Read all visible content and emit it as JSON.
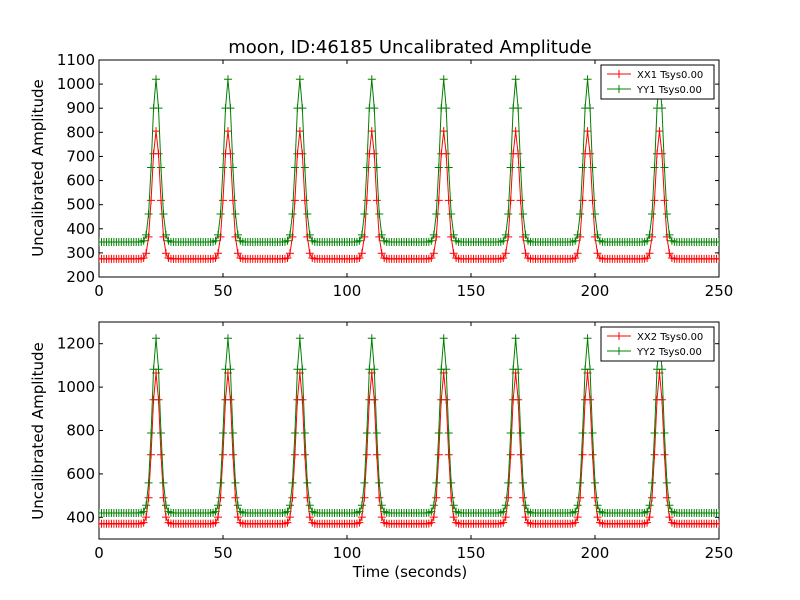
{
  "chart_data": [
    {
      "type": "line",
      "title": "moon, ID:46185 Uncalibrated Amplitude",
      "xlabel": "",
      "ylabel": "Uncalibrated Amplitude",
      "xlim": [
        0,
        250
      ],
      "ylim": [
        200,
        1100
      ],
      "xticks": [
        "0",
        "50",
        "100",
        "150",
        "200",
        "250"
      ],
      "yticks": [
        "200",
        "300",
        "400",
        "500",
        "600",
        "700",
        "800",
        "900",
        "1000",
        "1100"
      ],
      "legend_position": "top-right",
      "peak_times": [
        23,
        52,
        81,
        110,
        139,
        168,
        197,
        226
      ],
      "peak_width_seconds": 1.6,
      "sample_interval_seconds": 1,
      "series": [
        {
          "name": "XX1 Tsys0.00",
          "color": "#ff0000",
          "baseline": 275,
          "peak": 805
        },
        {
          "name": "YY1 Tsys0.00",
          "color": "#008000",
          "baseline": 345,
          "peak": 1020
        }
      ]
    },
    {
      "type": "line",
      "title": "",
      "xlabel": "Time (seconds)",
      "ylabel": "Uncalibrated Amplitude",
      "xlim": [
        0,
        250
      ],
      "ylim": [
        300,
        1300
      ],
      "xticks": [
        "0",
        "50",
        "100",
        "150",
        "200",
        "250"
      ],
      "yticks": [
        "400",
        "600",
        "800",
        "1000",
        "1200"
      ],
      "legend_position": "top-right",
      "peak_times": [
        23,
        52,
        81,
        110,
        139,
        168,
        197,
        226
      ],
      "peak_width_seconds": 1.6,
      "sample_interval_seconds": 1,
      "series": [
        {
          "name": "XX2 Tsys0.00",
          "color": "#ff0000",
          "baseline": 370,
          "peak": 1065
        },
        {
          "name": "YY2 Tsys0.00",
          "color": "#008000",
          "baseline": 420,
          "peak": 1225
        }
      ]
    }
  ]
}
